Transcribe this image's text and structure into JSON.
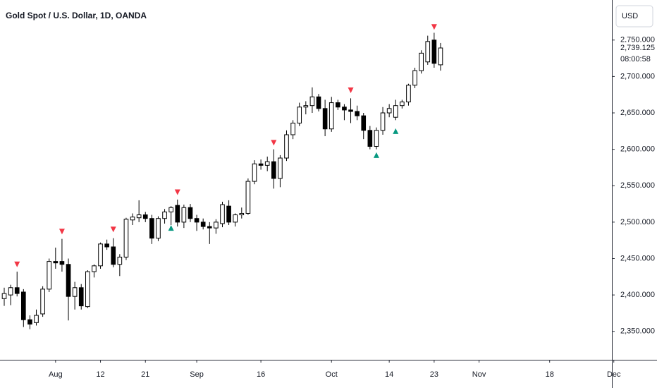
{
  "chart_data": {
    "type": "candlestick",
    "title": "Gold Spot / U.S. Dollar, 1D, OANDA",
    "currency": "USD",
    "x": [
      0,
      1,
      2,
      3,
      4,
      5,
      6,
      7,
      8,
      9,
      10,
      11,
      12,
      13,
      14,
      15,
      16,
      17,
      18,
      19,
      20,
      21,
      22,
      23,
      24,
      25,
      26,
      27,
      28,
      29,
      30,
      31,
      32,
      33,
      34,
      35,
      36,
      37,
      38,
      39,
      40,
      41,
      42,
      43,
      44,
      45,
      46,
      47,
      48,
      49,
      50,
      51,
      52,
      53,
      54,
      55,
      56,
      57,
      58,
      59,
      60,
      61,
      62,
      63,
      64,
      65,
      66,
      67,
      68
    ],
    "open": [
      2395,
      2400,
      2410,
      2404,
      2366,
      2362,
      2374,
      2408,
      2446,
      2446,
      2442,
      2398,
      2410,
      2384,
      2432,
      2440,
      2470,
      2466,
      2442,
      2452,
      2503,
      2506,
      2510,
      2505,
      2478,
      2505,
      2514,
      2523,
      2500,
      2520,
      2505,
      2500,
      2494,
      2492,
      2498,
      2522,
      2500,
      2510,
      2512,
      2556,
      2580,
      2578,
      2583,
      2560,
      2588,
      2620,
      2636,
      2658,
      2660,
      2672,
      2656,
      2628,
      2664,
      2658,
      2654,
      2652,
      2646,
      2626,
      2604,
      2626,
      2650,
      2644,
      2660,
      2665,
      2688,
      2708,
      2720,
      2750,
      2716
    ],
    "high": [
      2410,
      2414,
      2432,
      2408,
      2372,
      2380,
      2412,
      2450,
      2465,
      2477,
      2450,
      2418,
      2415,
      2434,
      2442,
      2472,
      2476,
      2478,
      2456,
      2506,
      2512,
      2530,
      2514,
      2510,
      2508,
      2518,
      2522,
      2531,
      2524,
      2525,
      2510,
      2505,
      2500,
      2504,
      2528,
      2530,
      2512,
      2520,
      2560,
      2585,
      2586,
      2590,
      2600,
      2592,
      2626,
      2640,
      2664,
      2666,
      2685,
      2676,
      2668,
      2672,
      2668,
      2662,
      2670,
      2660,
      2650,
      2632,
      2630,
      2658,
      2662,
      2668,
      2668,
      2690,
      2712,
      2736,
      2756,
      2760,
      2746
    ],
    "low": [
      2385,
      2386,
      2398,
      2356,
      2353,
      2358,
      2370,
      2404,
      2436,
      2432,
      2365,
      2380,
      2380,
      2382,
      2424,
      2436,
      2462,
      2438,
      2426,
      2448,
      2496,
      2500,
      2500,
      2470,
      2474,
      2498,
      2496,
      2494,
      2492,
      2500,
      2488,
      2490,
      2470,
      2484,
      2493,
      2496,
      2494,
      2505,
      2510,
      2552,
      2572,
      2570,
      2546,
      2548,
      2584,
      2614,
      2632,
      2648,
      2650,
      2652,
      2618,
      2624,
      2654,
      2640,
      2636,
      2640,
      2614,
      2600,
      2600,
      2620,
      2644,
      2640,
      2656,
      2660,
      2684,
      2704,
      2716,
      2712,
      2708
    ],
    "close": [
      2402,
      2410,
      2402,
      2366,
      2360,
      2372,
      2408,
      2446,
      2444,
      2442,
      2398,
      2410,
      2385,
      2432,
      2440,
      2470,
      2466,
      2442,
      2452,
      2504,
      2507,
      2510,
      2505,
      2478,
      2505,
      2514,
      2520,
      2500,
      2520,
      2505,
      2500,
      2494,
      2492,
      2500,
      2524,
      2500,
      2510,
      2512,
      2556,
      2580,
      2578,
      2583,
      2560,
      2588,
      2620,
      2636,
      2658,
      2660,
      2672,
      2656,
      2628,
      2664,
      2658,
      2654,
      2652,
      2646,
      2626,
      2604,
      2626,
      2650,
      2656,
      2660,
      2665,
      2688,
      2708,
      2732,
      2748,
      2718,
      2739.125
    ],
    "up_color": "#ffffff",
    "down_color": "#000000",
    "border_color": "#000000",
    "signals_down": {
      "color": "#f23645",
      "x": [
        2,
        9,
        17,
        27,
        42,
        54,
        67
      ],
      "y": [
        2442,
        2487,
        2490,
        2541,
        2609,
        2681,
        2768
      ]
    },
    "signals_up": {
      "color": "#089981",
      "x": [
        26,
        58,
        61
      ],
      "y": [
        2492,
        2592,
        2625
      ]
    },
    "last_price": {
      "value": 2739.125,
      "label": "2,739.125"
    },
    "countdown": "08:00:58",
    "xlim": [
      -0.66,
      94.7
    ],
    "ylim": [
      2311,
      2805
    ],
    "xticks": [
      {
        "value": 8,
        "label": "Aug"
      },
      {
        "value": 15,
        "label": "12"
      },
      {
        "value": 22,
        "label": "21"
      },
      {
        "value": 30,
        "label": "Sep"
      },
      {
        "value": 40,
        "label": "16"
      },
      {
        "value": 51,
        "label": "Oct"
      },
      {
        "value": 60,
        "label": "14"
      },
      {
        "value": 67,
        "label": "23"
      },
      {
        "value": 74,
        "label": "Nov"
      },
      {
        "value": 85,
        "label": "18"
      },
      {
        "value": 95,
        "label": "Dec"
      }
    ],
    "yticks": [
      {
        "value": 2350,
        "label": "2,350.000"
      },
      {
        "value": 2400,
        "label": "2,400.000"
      },
      {
        "value": 2450,
        "label": "2,450.000"
      },
      {
        "value": 2500,
        "label": "2,500.000"
      },
      {
        "value": 2550,
        "label": "2,550.000"
      },
      {
        "value": 2600,
        "label": "2,600.000"
      },
      {
        "value": 2650,
        "label": "2,650.000"
      },
      {
        "value": 2700,
        "label": "2,700.000"
      },
      {
        "value": 2750,
        "label": "2,750.000"
      }
    ]
  }
}
